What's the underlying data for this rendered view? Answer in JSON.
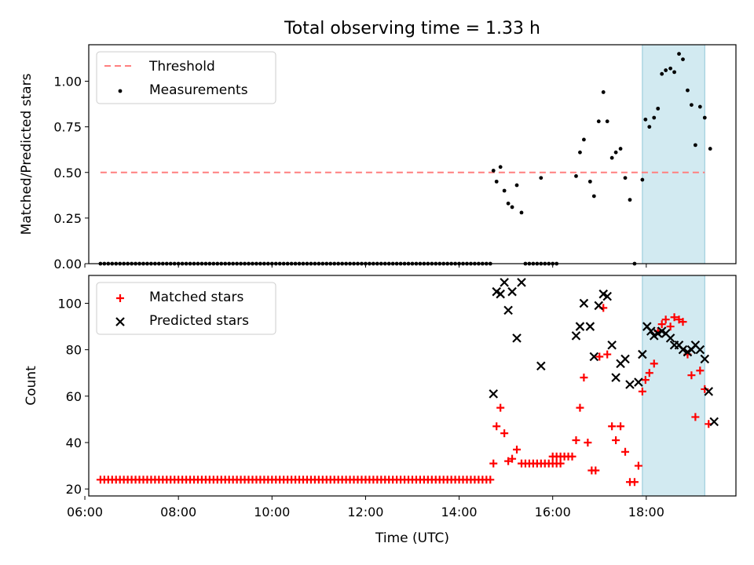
{
  "figure": {
    "title": "Total observing time = 1.33 h",
    "xlabel": "Time (UTC)",
    "x_ticks": [
      "06:00",
      "08:00",
      "10:00",
      "12:00",
      "14:00",
      "16:00",
      "18:00"
    ],
    "highlight_color": "#add8e6"
  },
  "chart_data": [
    {
      "type": "scatter",
      "ylabel": "Matched/Predicted stars",
      "ylim": [
        0,
        1.2
      ],
      "xlim": [
        "06:05",
        "19:55"
      ],
      "y_ticks": [
        "0.00",
        "0.25",
        "0.50",
        "0.75",
        "1.00"
      ],
      "highlight_span": [
        "17:55",
        "19:15"
      ],
      "legend_position": "upper-left",
      "threshold": {
        "name": "Threshold",
        "value": 0.5,
        "x_range": [
          "06:20",
          "19:15"
        ],
        "color": "#ff7f7f",
        "style": "dashed"
      },
      "series": [
        {
          "name": "Measurements",
          "color": "#000000",
          "marker": "dot",
          "x": [
            "14:44",
            "14:48",
            "14:53",
            "14:58",
            "15:03",
            "15:08",
            "15:14",
            "15:20",
            "15:45",
            "16:30",
            "16:35",
            "16:40",
            "16:48",
            "16:53",
            "16:59",
            "17:05",
            "17:10",
            "17:16",
            "17:21",
            "17:27",
            "17:33",
            "17:39",
            "17:45",
            "17:55",
            "17:59",
            "18:04",
            "18:10",
            "18:15",
            "18:20",
            "18:25",
            "18:31",
            "18:36",
            "18:42",
            "18:47",
            "18:53",
            "18:58",
            "19:03",
            "19:09",
            "19:15",
            "19:22"
          ],
          "y": [
            0.51,
            0.45,
            0.53,
            0.4,
            0.33,
            0.31,
            0.43,
            0.28,
            0.47,
            0.48,
            0.61,
            0.68,
            0.45,
            0.37,
            0.78,
            0.94,
            0.78,
            0.58,
            0.61,
            0.63,
            0.47,
            0.35,
            0.0,
            0.46,
            0.79,
            0.75,
            0.8,
            0.85,
            1.04,
            1.06,
            1.07,
            1.05,
            1.15,
            1.12,
            0.95,
            0.87,
            0.65,
            0.86,
            0.8,
            0.63
          ]
        }
      ],
      "zero_run_x": [
        "06:20",
        "14:40"
      ],
      "zero_run_x_2": [
        "15:25",
        "16:05"
      ]
    },
    {
      "type": "scatter",
      "ylabel": "Count",
      "ylim": [
        17,
        112
      ],
      "xlim": [
        "06:05",
        "19:55"
      ],
      "y_ticks": [
        "20",
        "40",
        "60",
        "80",
        "100"
      ],
      "highlight_span": [
        "17:55",
        "19:15"
      ],
      "legend_position": "upper-left",
      "series": [
        {
          "name": "Matched stars",
          "color": "#ff0000",
          "marker": "plus",
          "flat_runs": [
            {
              "x_range": [
                "06:20",
                "14:40"
              ],
              "y": 24
            },
            {
              "x_range": [
                "15:25",
                "16:10"
              ],
              "y": 31
            },
            {
              "x_range": [
                "16:00",
                "16:25"
              ],
              "y": 34
            }
          ],
          "x": [
            "14:44",
            "14:48",
            "14:53",
            "14:58",
            "15:03",
            "15:08",
            "15:14",
            "15:20",
            "16:30",
            "16:35",
            "16:40",
            "16:45",
            "16:50",
            "16:55",
            "17:00",
            "17:05",
            "17:10",
            "17:16",
            "17:21",
            "17:27",
            "17:33",
            "17:39",
            "17:45",
            "17:50",
            "17:55",
            "17:59",
            "18:04",
            "18:10",
            "18:15",
            "18:20",
            "18:25",
            "18:31",
            "18:36",
            "18:42",
            "18:47",
            "18:53",
            "18:58",
            "19:03",
            "19:09",
            "19:15",
            "19:20"
          ],
          "y": [
            31,
            47,
            55,
            44,
            32,
            33,
            37,
            31,
            41,
            55,
            68,
            40,
            28,
            28,
            77,
            98,
            78,
            47,
            41,
            47,
            36,
            23,
            23,
            30,
            62,
            67,
            70,
            74,
            88,
            91,
            93,
            90,
            94,
            93,
            92,
            78,
            69,
            51,
            71,
            63,
            48
          ]
        },
        {
          "name": "Predicted stars",
          "color": "#000000",
          "marker": "x",
          "x": [
            "14:44",
            "14:48",
            "14:53",
            "14:58",
            "15:03",
            "15:08",
            "15:14",
            "15:20",
            "15:45",
            "16:30",
            "16:35",
            "16:40",
            "16:48",
            "16:53",
            "16:59",
            "17:05",
            "17:10",
            "17:16",
            "17:21",
            "17:27",
            "17:33",
            "17:39",
            "17:50",
            "17:55",
            "18:01",
            "18:06",
            "18:10",
            "18:15",
            "18:20",
            "18:25",
            "18:31",
            "18:36",
            "18:42",
            "18:47",
            "18:53",
            "18:58",
            "19:03",
            "19:09",
            "19:15",
            "19:20",
            "19:27"
          ],
          "y": [
            61,
            105,
            104,
            109,
            97,
            105,
            85,
            109,
            73,
            86,
            90,
            100,
            90,
            77,
            99,
            104,
            103,
            82,
            68,
            74,
            76,
            65,
            66,
            78,
            90,
            88,
            86,
            87,
            88,
            87,
            85,
            82,
            82,
            80,
            79,
            80,
            82,
            80,
            76,
            62,
            49
          ]
        }
      ]
    }
  ]
}
